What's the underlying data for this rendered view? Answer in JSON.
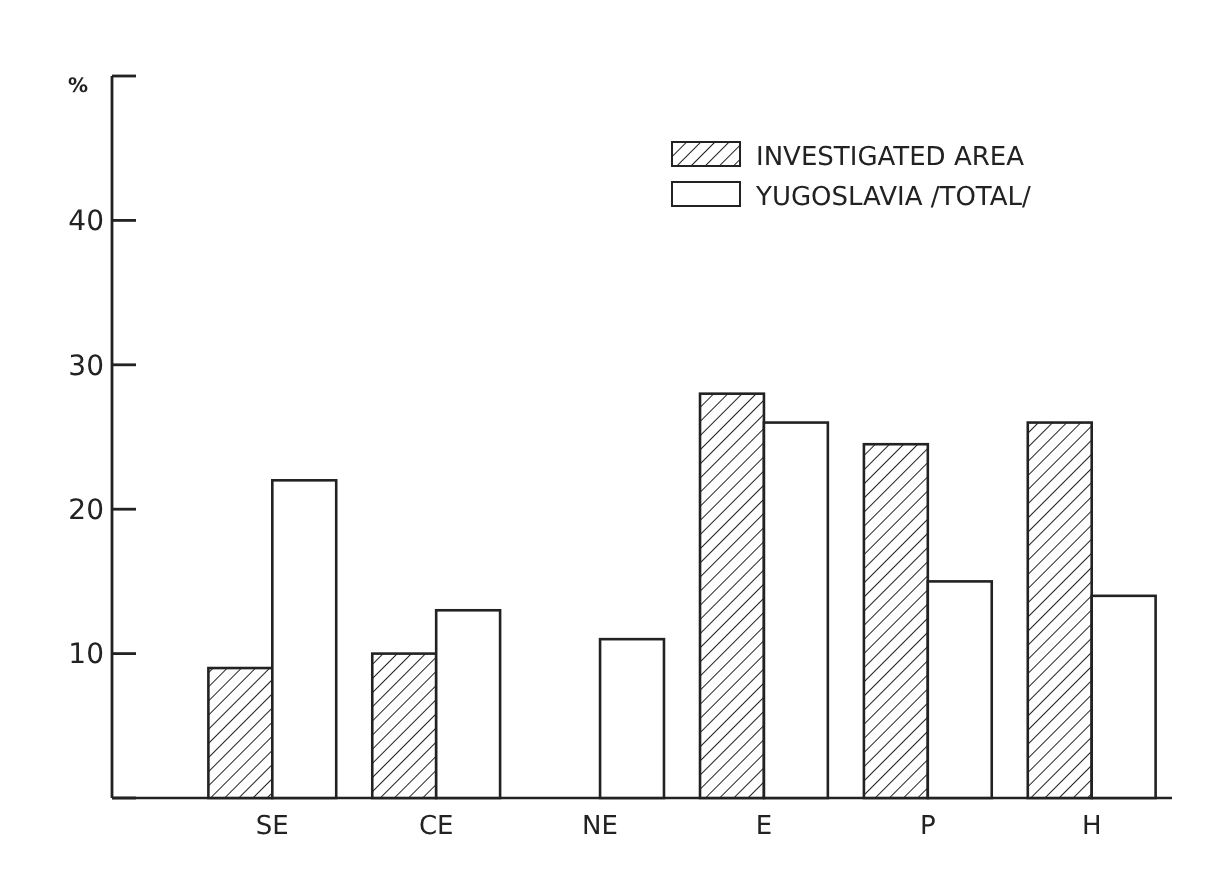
{
  "chart_data": {
    "type": "bar",
    "ylabel": "%",
    "categories": [
      "SE",
      "CE",
      "NE",
      "E",
      "P",
      "H"
    ],
    "series": [
      {
        "name": "INVESTIGATED AREA",
        "color": "#222222",
        "values": [
          9,
          10,
          0,
          28,
          24.5,
          26
        ]
      },
      {
        "name": "YUGOSLAVIA /TOTAL/",
        "color": "#ffffff",
        "values": [
          22,
          13,
          11,
          26,
          15,
          14
        ]
      }
    ],
    "ylim": [
      0,
      50
    ],
    "yticks": [
      {
        "value": 0,
        "label": null
      },
      10,
      20,
      30,
      40,
      {
        "value": 50,
        "label": null
      }
    ],
    "grid": false,
    "legend": "top right"
  }
}
